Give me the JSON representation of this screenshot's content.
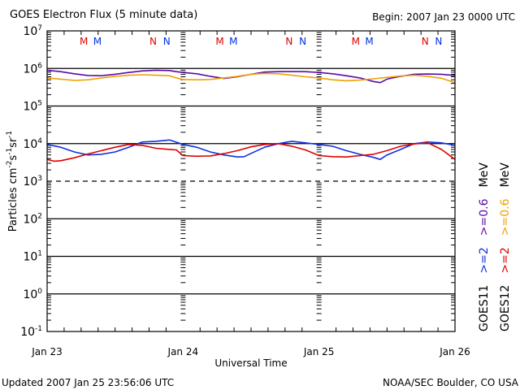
{
  "chart_data": {
    "type": "line",
    "title": "GOES Electron Flux (5 minute data)",
    "subtitle": "Begin: 2007 Jan 23 0000 UTC",
    "xlabel": "Universal Time",
    "ylabel_parts": {
      "base": "Particles cm",
      "exp1": "-2",
      "s": "s",
      "exp2": "-1",
      "sr": "sr",
      "exp3": "-1"
    },
    "yscale": "log",
    "ylim": [
      0.1,
      10000000
    ],
    "xlim_days": [
      0,
      3
    ],
    "x_tick_labels": [
      "Jan 23",
      "Jan 24",
      "Jan 25",
      "Jan 26"
    ],
    "y_tick_labels": [
      {
        "base": "10",
        "exp": "-1",
        "value": 0.1
      },
      {
        "base": "10",
        "exp": "0",
        "value": 1
      },
      {
        "base": "10",
        "exp": "1",
        "value": 10
      },
      {
        "base": "10",
        "exp": "2",
        "value": 100
      },
      {
        "base": "10",
        "exp": "3",
        "value": 1000
      },
      {
        "base": "10",
        "exp": "4",
        "value": 10000
      },
      {
        "base": "10",
        "exp": "5",
        "value": 100000
      },
      {
        "base": "10",
        "exp": "6",
        "value": 1000000
      },
      {
        "base": "10",
        "exp": "7",
        "value": 10000000
      }
    ],
    "reference_lines": [
      {
        "value": 1000000,
        "style": "solid"
      },
      {
        "value": 100000,
        "style": "solid"
      },
      {
        "value": 10000,
        "style": "solid"
      },
      {
        "value": 1000,
        "style": "dashed"
      },
      {
        "value": 100,
        "style": "solid"
      },
      {
        "value": 10,
        "style": "solid"
      },
      {
        "value": 1,
        "style": "solid"
      }
    ],
    "markers": [
      {
        "label": "M",
        "day": 0.27,
        "color": "#e00000"
      },
      {
        "label": "M",
        "day": 0.37,
        "color": "#0030e0"
      },
      {
        "label": "N",
        "day": 0.78,
        "color": "#e00000"
      },
      {
        "label": "N",
        "day": 0.88,
        "color": "#0030e0"
      },
      {
        "label": "M",
        "day": 1.27,
        "color": "#e00000"
      },
      {
        "label": "M",
        "day": 1.37,
        "color": "#0030e0"
      },
      {
        "label": "N",
        "day": 1.78,
        "color": "#e00000"
      },
      {
        "label": "N",
        "day": 1.88,
        "color": "#0030e0"
      },
      {
        "label": "M",
        "day": 2.27,
        "color": "#e00000"
      },
      {
        "label": "M",
        "day": 2.37,
        "color": "#0030e0"
      },
      {
        "label": "N",
        "day": 2.78,
        "color": "#e00000"
      },
      {
        "label": "N",
        "day": 2.88,
        "color": "#0030e0"
      }
    ],
    "series": [
      {
        "name": "GOES11 >=0.6 MeV",
        "color": "#5a0aa8",
        "x": [
          0,
          0.1,
          0.2,
          0.3,
          0.4,
          0.5,
          0.6,
          0.7,
          0.8,
          0.9,
          0.95,
          1.0,
          1.1,
          1.2,
          1.3,
          1.4,
          1.5,
          1.6,
          1.7,
          1.8,
          1.9,
          2.0,
          2.1,
          2.2,
          2.3,
          2.4,
          2.45,
          2.5,
          2.6,
          2.7,
          2.8,
          2.9,
          3.0
        ],
        "values": [
          900000,
          820000,
          720000,
          650000,
          640000,
          700000,
          780000,
          860000,
          900000,
          880000,
          820000,
          780000,
          720000,
          620000,
          540000,
          600000,
          700000,
          800000,
          820000,
          830000,
          820000,
          780000,
          720000,
          640000,
          560000,
          450000,
          420000,
          520000,
          620000,
          700000,
          710000,
          700000,
          650000
        ]
      },
      {
        "name": "GOES12 >=0.6 MeV",
        "color": "#f0a000",
        "x": [
          0,
          0.1,
          0.2,
          0.3,
          0.4,
          0.5,
          0.6,
          0.7,
          0.8,
          0.9,
          0.95,
          1.0,
          1.1,
          1.2,
          1.3,
          1.4,
          1.5,
          1.6,
          1.7,
          1.8,
          1.9,
          2.0,
          2.1,
          2.2,
          2.3,
          2.4,
          2.5,
          2.6,
          2.7,
          2.8,
          2.9,
          3.0
        ],
        "values": [
          560000,
          520000,
          480000,
          500000,
          560000,
          620000,
          660000,
          680000,
          660000,
          640000,
          560000,
          510000,
          500000,
          510000,
          560000,
          620000,
          700000,
          740000,
          720000,
          660000,
          600000,
          560000,
          500000,
          470000,
          490000,
          530000,
          580000,
          630000,
          660000,
          620000,
          550000,
          420000
        ]
      },
      {
        "name": "GOES11 >=2 MeV",
        "color": "#1030e0",
        "x": [
          0,
          0.1,
          0.2,
          0.3,
          0.4,
          0.5,
          0.6,
          0.7,
          0.8,
          0.9,
          1.0,
          1.1,
          1.2,
          1.3,
          1.4,
          1.45,
          1.5,
          1.6,
          1.7,
          1.8,
          1.9,
          2.0,
          2.1,
          2.2,
          2.3,
          2.4,
          2.45,
          2.5,
          2.6,
          2.7,
          2.8,
          2.9,
          3.0
        ],
        "values": [
          9500,
          8000,
          6000,
          5000,
          5200,
          6000,
          8000,
          11000,
          11500,
          12500,
          9500,
          8000,
          6000,
          5000,
          4400,
          4500,
          5500,
          8000,
          10000,
          11500,
          10500,
          9500,
          8500,
          6500,
          5200,
          4300,
          3800,
          5000,
          7000,
          10000,
          11000,
          10500,
          9000
        ]
      },
      {
        "name": "GOES12 >=2 MeV",
        "color": "#e00000",
        "x": [
          0,
          0.05,
          0.1,
          0.2,
          0.3,
          0.4,
          0.5,
          0.6,
          0.7,
          0.8,
          0.9,
          0.95,
          1.0,
          1.1,
          1.2,
          1.3,
          1.4,
          1.5,
          1.6,
          1.7,
          1.8,
          1.9,
          2.0,
          2.1,
          2.2,
          2.3,
          2.4,
          2.5,
          2.6,
          2.7,
          2.8,
          2.9,
          3.0
        ],
        "values": [
          3800,
          3400,
          3500,
          4200,
          5300,
          6500,
          8000,
          9500,
          9000,
          7500,
          7000,
          6800,
          4800,
          4600,
          4700,
          5400,
          6500,
          8200,
          9500,
          10000,
          8500,
          6800,
          4800,
          4500,
          4400,
          4800,
          5200,
          6500,
          8500,
          9800,
          10500,
          7000,
          3800
        ]
      }
    ],
    "legend": [
      {
        "sat": "GOES11",
        "items": [
          {
            "text": ">=2",
            "color": "#1030e0"
          },
          {
            "text": ">=0.6",
            "color": "#5a0aa8"
          }
        ],
        "unit": "MeV"
      },
      {
        "sat": "GOES12",
        "items": [
          {
            "text": ">=2",
            "color": "#e00000"
          },
          {
            "text": ">=0.6",
            "color": "#f0a000"
          }
        ],
        "unit": "MeV"
      }
    ],
    "legend_placement": "right-outside-vertical",
    "grid": false
  },
  "footer": {
    "updated": "Updated 2007 Jan 25 23:56:06 UTC",
    "credit": "NOAA/SEC Boulder, CO USA"
  }
}
